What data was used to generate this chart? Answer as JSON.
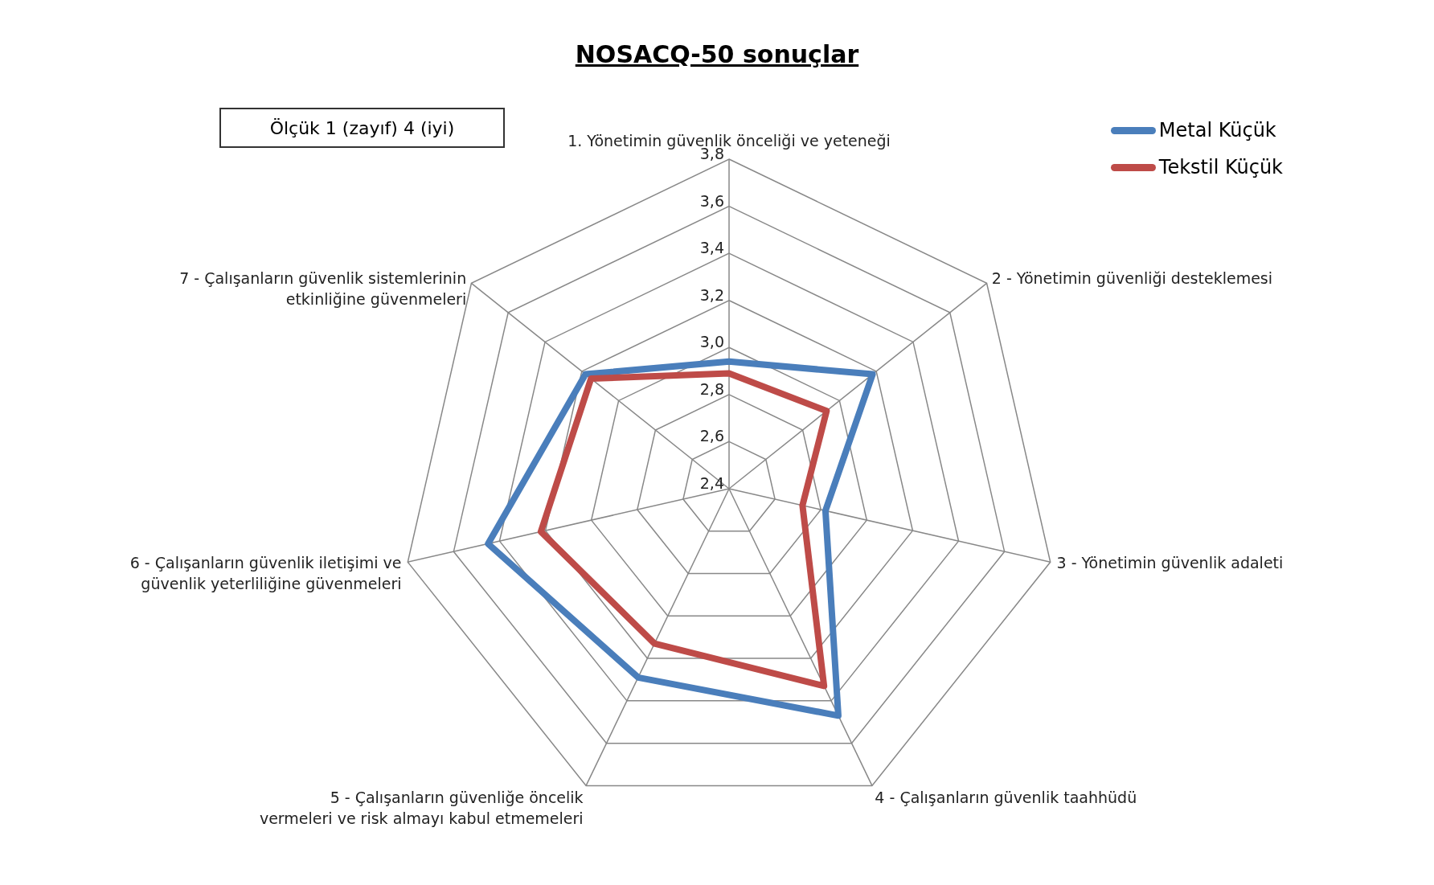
{
  "chart_data": {
    "type": "radar",
    "title": "NOSACQ-50 sonuçlar",
    "annotations": [
      "Ölçük 1 (zayıf) 4 (iyi)"
    ],
    "categories": [
      "1. Yönetimin güvenlik önceliği ve yeteneği",
      "2 - Yönetimin güvenliği desteklemesi",
      "3 - Yönetimin güvenlik adaleti",
      "4 - Çalışanların güvenlik taahhüdü",
      "5 - Çalışanların güvenliğe öncelik vermeleri ve risk almayı kabul etmemeleri",
      "6 - Çalışanların güvenlik iletişimi ve güvenlik yeterliliğine güvenmeleri",
      "7 - Çalışanların güvenlik sistemlerinin etkinliğine güvenmeleri"
    ],
    "series": [
      {
        "name": "Metal Küçük",
        "color": "#4a7ebb",
        "values": [
          2.94,
          3.18,
          2.82,
          3.47,
          3.29,
          3.45,
          3.18
        ]
      },
      {
        "name": "Tekstil Küçük",
        "color": "#be4b48",
        "values": [
          2.89,
          2.93,
          2.72,
          3.33,
          3.13,
          3.22,
          3.15
        ]
      }
    ],
    "ylim": [
      2.4,
      3.8
    ],
    "yticks": [
      {
        "value": 2.4,
        "label": "2,4"
      },
      {
        "value": 2.6,
        "label": "2,6"
      },
      {
        "value": 2.8,
        "label": "2,8"
      },
      {
        "value": 3.0,
        "label": "3,0"
      },
      {
        "value": 3.2,
        "label": "3,2"
      },
      {
        "value": 3.4,
        "label": "3,4"
      },
      {
        "value": 3.6,
        "label": "3,6"
      },
      {
        "value": 3.8,
        "label": "3,8"
      }
    ],
    "grid": true,
    "legend": "top right",
    "marker": "none"
  }
}
